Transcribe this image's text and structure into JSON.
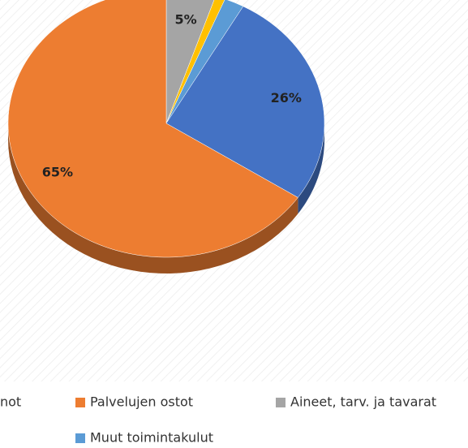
{
  "chart_data": {
    "type": "pie",
    "slices": [
      {
        "color": "#a5a5a5",
        "value": 5,
        "value_label": "5%"
      },
      {
        "color": "#ffc000",
        "value": 1,
        "value_label": "1%"
      },
      {
        "color": "#5b9bd5",
        "value": 2,
        "value_label": "2%"
      },
      {
        "color": "#4472c4",
        "value": 26,
        "value_label": "26%"
      },
      {
        "color": "#ed7d31",
        "value": 65,
        "value_label": "65%"
      }
    ],
    "legend": [
      {
        "name": "not",
        "color": "#4472c4"
      },
      {
        "name": "Palvelujen ostot",
        "color": "#ed7d31"
      },
      {
        "name": "Aineet, tarv. ja tavarat",
        "color": "#a5a5a5"
      },
      {
        "name": "Muut toimintakulut",
        "color": "#5b9bd5"
      }
    ]
  }
}
